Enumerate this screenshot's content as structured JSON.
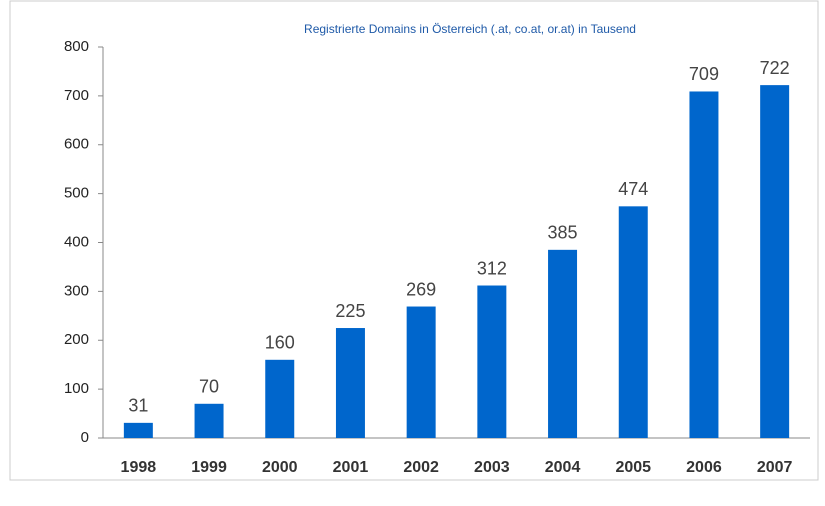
{
  "chart_data": {
    "type": "bar",
    "title": "Registrierte Domains in Österreich (.at, co.at, or.at) in Tausend",
    "categories": [
      "1998",
      "1999",
      "2000",
      "2001",
      "2002",
      "2003",
      "2004",
      "2005",
      "2006",
      "2007"
    ],
    "values": [
      31,
      70,
      160,
      225,
      269,
      312,
      385,
      474,
      709,
      722
    ],
    "color": "#0066cc",
    "ylim": [
      0,
      800
    ],
    "yticks": [
      0,
      100,
      200,
      300,
      400,
      500,
      600,
      700,
      800
    ],
    "grid": false
  }
}
